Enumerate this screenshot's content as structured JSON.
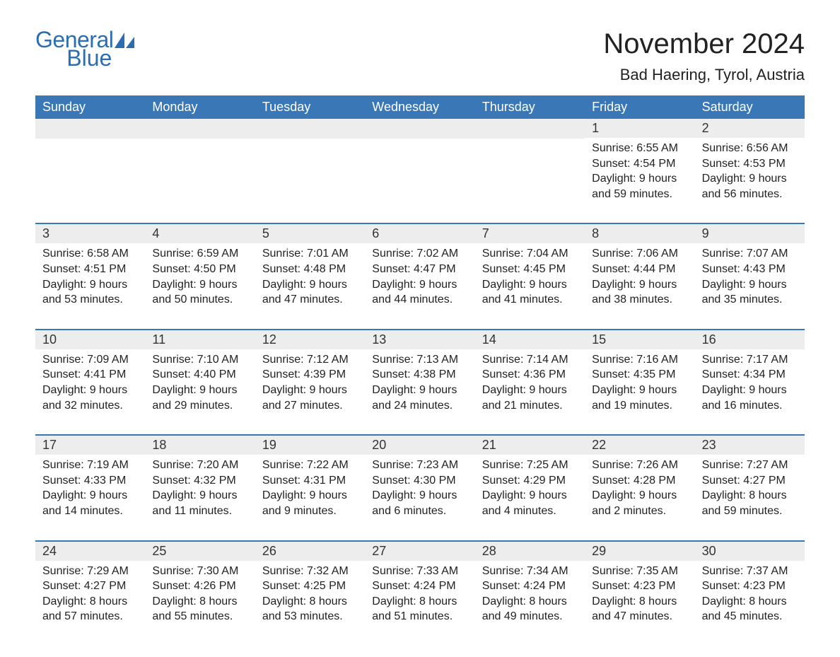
{
  "logo": {
    "general": "General",
    "blue": "Blue",
    "shape_color": "#2b6db0"
  },
  "title": "November 2024",
  "location": "Bad Haering, Tyrol, Austria",
  "colors": {
    "header_bg": "#3a77b7",
    "header_text": "#ffffff",
    "row_sep": "#3a77b7",
    "daynum_bg": "#ededed",
    "body_text": "#222222",
    "page_bg": "#ffffff"
  },
  "day_names": [
    "Sunday",
    "Monday",
    "Tuesday",
    "Wednesday",
    "Thursday",
    "Friday",
    "Saturday"
  ],
  "weeks": [
    [
      {
        "empty": true
      },
      {
        "empty": true
      },
      {
        "empty": true
      },
      {
        "empty": true
      },
      {
        "empty": true
      },
      {
        "n": "1",
        "sunrise": "6:55 AM",
        "sunset": "4:54 PM",
        "daylight": "9 hours and 59 minutes."
      },
      {
        "n": "2",
        "sunrise": "6:56 AM",
        "sunset": "4:53 PM",
        "daylight": "9 hours and 56 minutes."
      }
    ],
    [
      {
        "n": "3",
        "sunrise": "6:58 AM",
        "sunset": "4:51 PM",
        "daylight": "9 hours and 53 minutes."
      },
      {
        "n": "4",
        "sunrise": "6:59 AM",
        "sunset": "4:50 PM",
        "daylight": "9 hours and 50 minutes."
      },
      {
        "n": "5",
        "sunrise": "7:01 AM",
        "sunset": "4:48 PM",
        "daylight": "9 hours and 47 minutes."
      },
      {
        "n": "6",
        "sunrise": "7:02 AM",
        "sunset": "4:47 PM",
        "daylight": "9 hours and 44 minutes."
      },
      {
        "n": "7",
        "sunrise": "7:04 AM",
        "sunset": "4:45 PM",
        "daylight": "9 hours and 41 minutes."
      },
      {
        "n": "8",
        "sunrise": "7:06 AM",
        "sunset": "4:44 PM",
        "daylight": "9 hours and 38 minutes."
      },
      {
        "n": "9",
        "sunrise": "7:07 AM",
        "sunset": "4:43 PM",
        "daylight": "9 hours and 35 minutes."
      }
    ],
    [
      {
        "n": "10",
        "sunrise": "7:09 AM",
        "sunset": "4:41 PM",
        "daylight": "9 hours and 32 minutes."
      },
      {
        "n": "11",
        "sunrise": "7:10 AM",
        "sunset": "4:40 PM",
        "daylight": "9 hours and 29 minutes."
      },
      {
        "n": "12",
        "sunrise": "7:12 AM",
        "sunset": "4:39 PM",
        "daylight": "9 hours and 27 minutes."
      },
      {
        "n": "13",
        "sunrise": "7:13 AM",
        "sunset": "4:38 PM",
        "daylight": "9 hours and 24 minutes."
      },
      {
        "n": "14",
        "sunrise": "7:14 AM",
        "sunset": "4:36 PM",
        "daylight": "9 hours and 21 minutes."
      },
      {
        "n": "15",
        "sunrise": "7:16 AM",
        "sunset": "4:35 PM",
        "daylight": "9 hours and 19 minutes."
      },
      {
        "n": "16",
        "sunrise": "7:17 AM",
        "sunset": "4:34 PM",
        "daylight": "9 hours and 16 minutes."
      }
    ],
    [
      {
        "n": "17",
        "sunrise": "7:19 AM",
        "sunset": "4:33 PM",
        "daylight": "9 hours and 14 minutes."
      },
      {
        "n": "18",
        "sunrise": "7:20 AM",
        "sunset": "4:32 PM",
        "daylight": "9 hours and 11 minutes."
      },
      {
        "n": "19",
        "sunrise": "7:22 AM",
        "sunset": "4:31 PM",
        "daylight": "9 hours and 9 minutes."
      },
      {
        "n": "20",
        "sunrise": "7:23 AM",
        "sunset": "4:30 PM",
        "daylight": "9 hours and 6 minutes."
      },
      {
        "n": "21",
        "sunrise": "7:25 AM",
        "sunset": "4:29 PM",
        "daylight": "9 hours and 4 minutes."
      },
      {
        "n": "22",
        "sunrise": "7:26 AM",
        "sunset": "4:28 PM",
        "daylight": "9 hours and 2 minutes."
      },
      {
        "n": "23",
        "sunrise": "7:27 AM",
        "sunset": "4:27 PM",
        "daylight": "8 hours and 59 minutes."
      }
    ],
    [
      {
        "n": "24",
        "sunrise": "7:29 AM",
        "sunset": "4:27 PM",
        "daylight": "8 hours and 57 minutes."
      },
      {
        "n": "25",
        "sunrise": "7:30 AM",
        "sunset": "4:26 PM",
        "daylight": "8 hours and 55 minutes."
      },
      {
        "n": "26",
        "sunrise": "7:32 AM",
        "sunset": "4:25 PM",
        "daylight": "8 hours and 53 minutes."
      },
      {
        "n": "27",
        "sunrise": "7:33 AM",
        "sunset": "4:24 PM",
        "daylight": "8 hours and 51 minutes."
      },
      {
        "n": "28",
        "sunrise": "7:34 AM",
        "sunset": "4:24 PM",
        "daylight": "8 hours and 49 minutes."
      },
      {
        "n": "29",
        "sunrise": "7:35 AM",
        "sunset": "4:23 PM",
        "daylight": "8 hours and 47 minutes."
      },
      {
        "n": "30",
        "sunrise": "7:37 AM",
        "sunset": "4:23 PM",
        "daylight": "8 hours and 45 minutes."
      }
    ]
  ],
  "labels": {
    "sunrise": "Sunrise:",
    "sunset": "Sunset:",
    "daylight": "Daylight:"
  }
}
